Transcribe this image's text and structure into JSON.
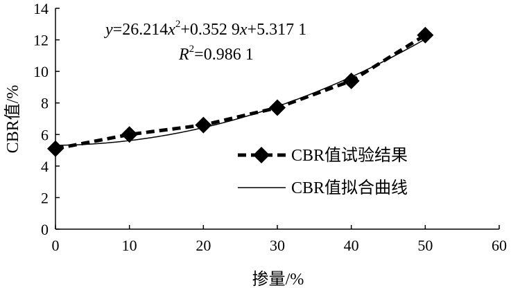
{
  "chart_data": {
    "type": "line",
    "xlabel": "掺量/%",
    "ylabel": "CBR值/%",
    "xlim": [
      0,
      60
    ],
    "ylim": [
      0,
      14
    ],
    "x_ticks": [
      0,
      10,
      20,
      30,
      40,
      50,
      60
    ],
    "y_ticks": [
      0,
      2,
      4,
      6,
      8,
      10,
      12,
      14
    ],
    "grid": false,
    "legend_position": "center-right",
    "series": [
      {
        "name": "CBR值试验结果",
        "style": "dashed-diamond",
        "x": [
          0,
          10,
          20,
          30,
          40,
          50
        ],
        "y": [
          5.1,
          6.0,
          6.6,
          7.7,
          9.4,
          12.3
        ]
      },
      {
        "name": "CBR值拟合曲线",
        "style": "solid",
        "fit_coefficients": [
          26.214,
          0.3529,
          5.3171
        ],
        "fit_variable_scale": 0.01
      }
    ],
    "annotations": {
      "equation": {
        "y": "y",
        "eq_part1": "=26.214",
        "x1": "x",
        "sup2": "2",
        "eq_part2": "+0.352 9",
        "x2": "x",
        "eq_part3": "+5.317 1"
      },
      "r2": {
        "R": "R",
        "sup2": "2",
        "value": "=0.986 1"
      }
    }
  }
}
